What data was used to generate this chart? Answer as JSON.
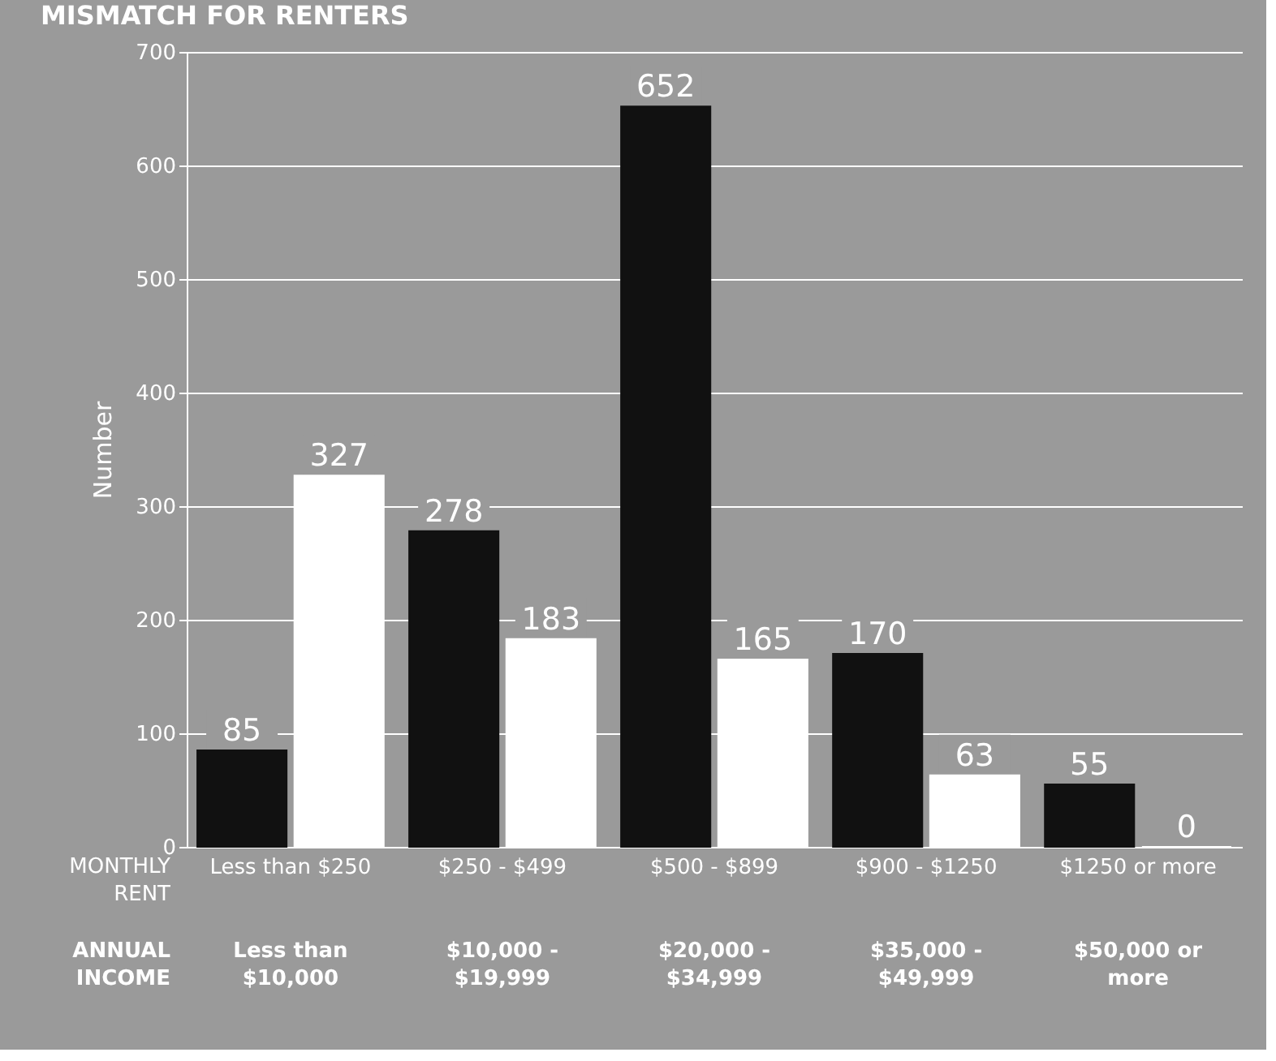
{
  "chart_data": {
    "type": "bar",
    "title": "MISMATCH FOR RENTERS",
    "ylabel": "Number",
    "categories": [
      "Less than $250",
      "$250 - $499",
      "$500 - $899",
      "$900 - $1250",
      "$1250 or more"
    ],
    "series": [
      {
        "color": "#111111",
        "values": [
          85,
          278,
          652,
          170,
          55
        ]
      },
      {
        "color": "#ffffff",
        "values": [
          327,
          183,
          165,
          63,
          0
        ]
      }
    ],
    "ylim": [
      0,
      700
    ],
    "yticks": [
      0,
      100,
      200,
      300,
      400,
      500,
      600,
      700
    ],
    "grid": "y",
    "data_labels": true,
    "annotations": [
      "MONTHLY RENT",
      "ANNUAL INCOME",
      "Less than $10,000",
      "$10,000 - $19,999",
      "$20,000 - $34,999",
      "$35,000 - $49,999",
      "$50,000 or more"
    ]
  }
}
